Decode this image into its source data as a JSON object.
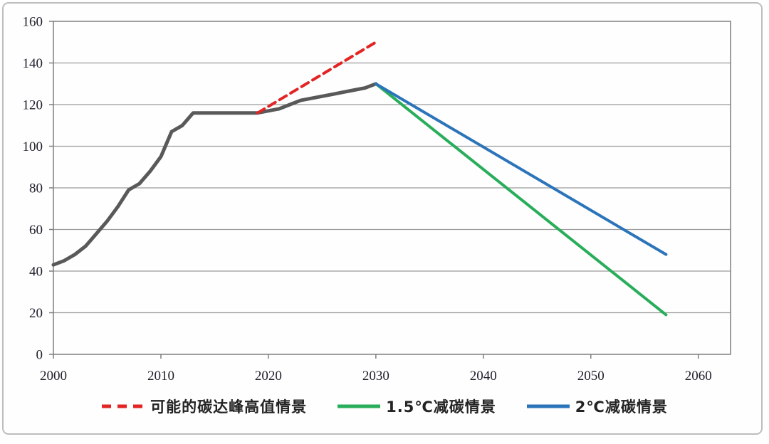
{
  "chart_data": {
    "type": "line",
    "title": "",
    "xlabel": "",
    "ylabel": "",
    "x_axis": {
      "min": 2000,
      "max": 2063,
      "ticks": [
        2000,
        2010,
        2020,
        2030,
        2040,
        2050,
        2060
      ]
    },
    "y_axis": {
      "min": 0,
      "max": 160,
      "tick_step": 20,
      "ticks": [
        0,
        20,
        40,
        60,
        80,
        100,
        120,
        140,
        160
      ]
    },
    "grid": "horizontal",
    "legend_position": "bottom-center",
    "gridline_color": "#9a9a9a",
    "border_color": "#7f7f7f",
    "axis_label_color": "#21212d",
    "series": [
      {
        "id": "historical-emissions",
        "legend_label": null,
        "color": "#595959",
        "width": 5,
        "dash": null,
        "points": [
          [
            2000,
            43
          ],
          [
            2001,
            45
          ],
          [
            2002,
            48
          ],
          [
            2003,
            52
          ],
          [
            2004,
            58
          ],
          [
            2005,
            64
          ],
          [
            2006,
            71
          ],
          [
            2007,
            79
          ],
          [
            2008,
            82
          ],
          [
            2009,
            88
          ],
          [
            2010,
            95
          ],
          [
            2011,
            107
          ],
          [
            2012,
            110
          ],
          [
            2013,
            116
          ],
          [
            2014,
            116
          ],
          [
            2015,
            116
          ],
          [
            2016,
            116
          ],
          [
            2017,
            116
          ],
          [
            2018,
            116
          ],
          [
            2019,
            116
          ],
          [
            2020,
            117
          ],
          [
            2021,
            118
          ],
          [
            2022,
            120
          ],
          [
            2023,
            122
          ],
          [
            2024,
            123
          ],
          [
            2025,
            124
          ],
          [
            2026,
            125
          ],
          [
            2027,
            126
          ],
          [
            2028,
            127
          ],
          [
            2029,
            128
          ],
          [
            2030,
            130
          ]
        ]
      },
      {
        "id": "peak-high-scenario",
        "legend_label": "可能的碳达峰高值情景",
        "color": "#e22424",
        "width": 4,
        "dash": "11,7",
        "points": [
          [
            2019,
            116
          ],
          [
            2030,
            150
          ]
        ]
      },
      {
        "id": "reduction-1p5c-scenario",
        "legend_label": "1.5℃减碳情景",
        "color": "#28ad5a",
        "width": 4,
        "dash": null,
        "points": [
          [
            2030,
            130
          ],
          [
            2057,
            19
          ]
        ]
      },
      {
        "id": "reduction-2c-scenario",
        "legend_label": "2℃减碳情景",
        "color": "#2c74ba",
        "width": 4,
        "dash": null,
        "points": [
          [
            2030,
            130
          ],
          [
            2057,
            48
          ]
        ]
      }
    ]
  }
}
